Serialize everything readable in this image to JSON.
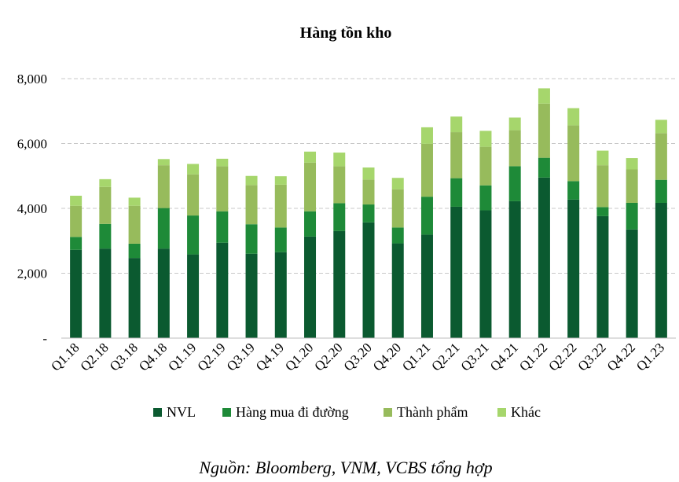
{
  "chart_data": {
    "type": "bar",
    "stacked": true,
    "title": "Hàng tồn kho",
    "categories": [
      "Q1.18",
      "Q2.18",
      "Q3.18",
      "Q4.18",
      "Q1.19",
      "Q2.19",
      "Q3.19",
      "Q4.19",
      "Q1.20",
      "Q2.20",
      "Q3.20",
      "Q4.20",
      "Q1.21",
      "Q2.21",
      "Q3.21",
      "Q4.21",
      "Q1.22",
      "Q2.22",
      "Q3.22",
      "Q4.22",
      "Q1.23"
    ],
    "series": [
      {
        "name": "NVL",
        "color": "#0b5a30",
        "values": [
          2720,
          2760,
          2470,
          2760,
          2580,
          2940,
          2600,
          2650,
          3130,
          3300,
          3570,
          2920,
          3190,
          4050,
          3940,
          4220,
          4950,
          4270,
          3760,
          3350,
          4170
        ]
      },
      {
        "name": "Hàng mua đi đường",
        "color": "#1e8a38",
        "values": [
          400,
          760,
          440,
          1250,
          1200,
          970,
          910,
          760,
          780,
          860,
          550,
          490,
          1170,
          880,
          770,
          1080,
          610,
          570,
          280,
          820,
          710
        ]
      },
      {
        "name": "Thành phẩm",
        "color": "#97bb5c",
        "values": [
          960,
          1140,
          1170,
          1320,
          1270,
          1390,
          1210,
          1320,
          1500,
          1140,
          770,
          1180,
          1630,
          1420,
          1190,
          1110,
          1670,
          1720,
          1290,
          1030,
          1440
        ]
      },
      {
        "name": "Khác",
        "color": "#a6d66c",
        "values": [
          310,
          240,
          250,
          190,
          320,
          230,
          280,
          260,
          340,
          420,
          370,
          350,
          510,
          480,
          490,
          390,
          470,
          530,
          450,
          350,
          410
        ]
      }
    ],
    "ylim": [
      0,
      8000
    ],
    "yticks": [
      0,
      2000,
      4000,
      6000,
      8000
    ],
    "ytick_labels": [
      "-",
      "2,000",
      "4,000",
      "6,000",
      "8,000"
    ],
    "grid": true,
    "legend_position": "bottom",
    "xlabel": "",
    "ylabel": ""
  },
  "source": "Nguồn: Bloomberg, VNM, VCBS tổng hợp"
}
